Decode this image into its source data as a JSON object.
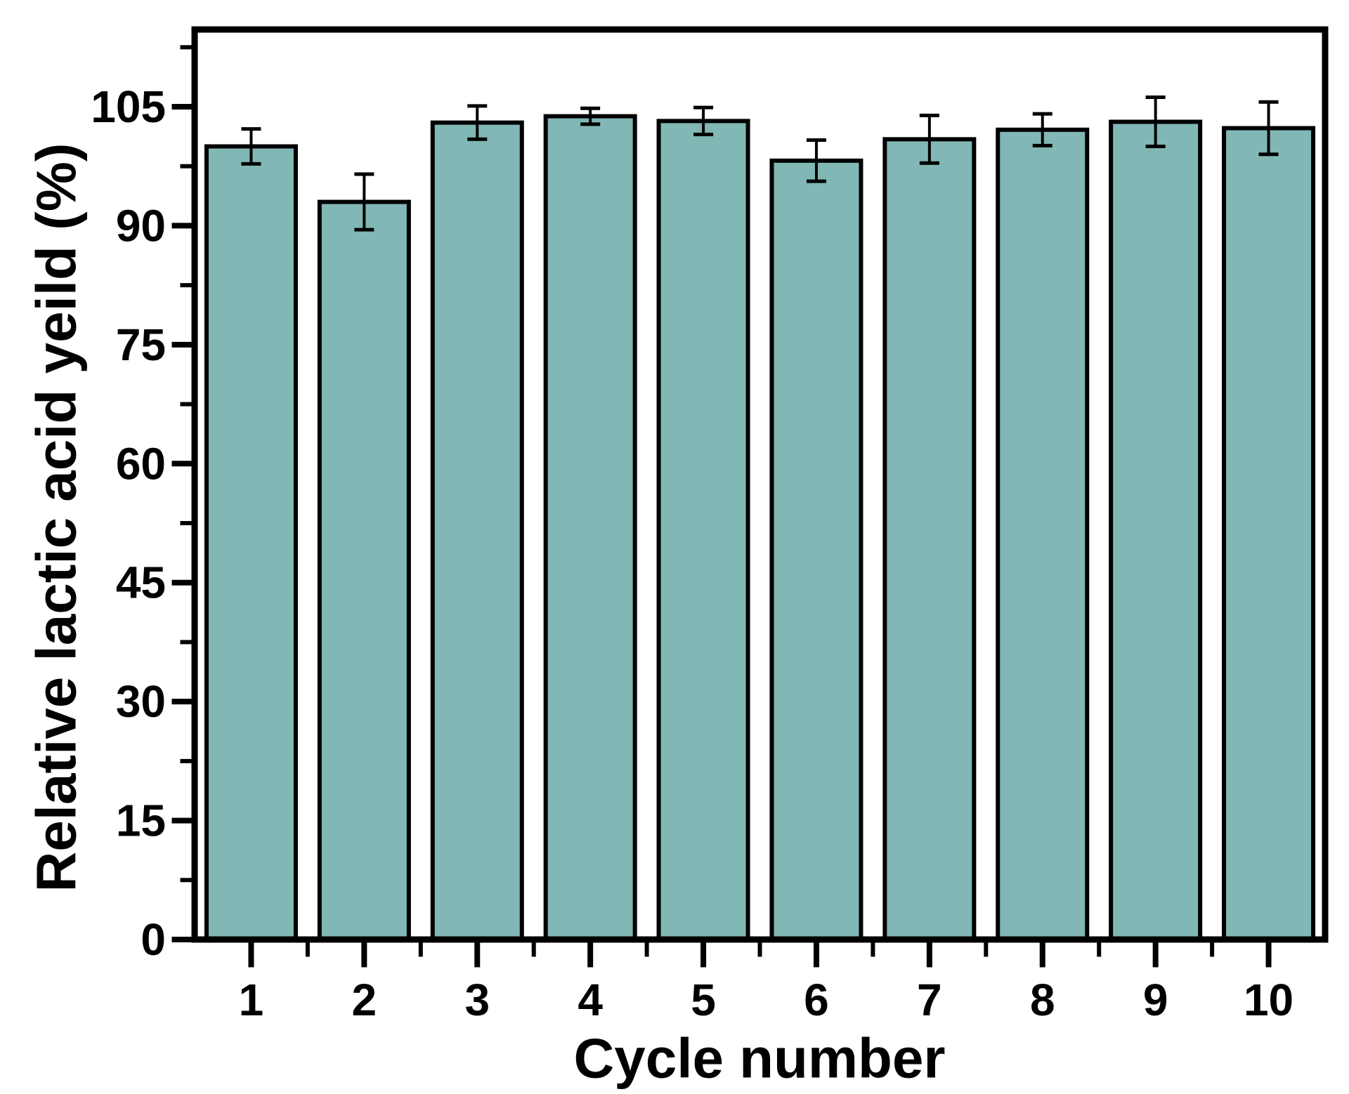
{
  "chart_data": {
    "type": "bar",
    "title": "",
    "xlabel": "Cycle number",
    "ylabel": "Relative lactic acid yeild (%)",
    "categories": [
      "1",
      "2",
      "3",
      "4",
      "5",
      "6",
      "7",
      "8",
      "9",
      "10"
    ],
    "values": [
      100.0,
      93.0,
      103.0,
      103.8,
      103.2,
      98.2,
      100.9,
      102.1,
      103.1,
      102.3
    ],
    "error_bars": [
      2.2,
      3.5,
      2.1,
      1.0,
      1.7,
      2.6,
      3.0,
      2.0,
      3.1,
      3.3
    ],
    "yticks": [
      0,
      15,
      30,
      45,
      60,
      75,
      90,
      105
    ],
    "y_minor_tick_interval": 7.5,
    "ylim": [
      0,
      115
    ],
    "grid": false,
    "legend": false,
    "colors": {
      "bar_fill": "#81b7b5",
      "bar_border": "#000000",
      "error_bar": "#000000",
      "axis": "#000000",
      "background": "#ffffff"
    }
  }
}
